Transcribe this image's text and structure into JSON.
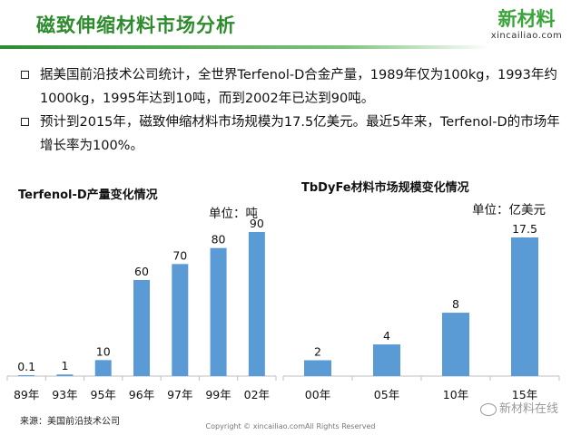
{
  "header": {
    "title": "磁致伸缩材料市场分析",
    "logo_text": "新材料",
    "logo_sub": "xincailiao.com"
  },
  "bullets": [
    "据美国前沿技术公司统计，全世界Terfenol-D合金产量，1989年仅为100kg，1993年约1000kg，1995年达到10吨，而到2002年已达到90吨。",
    "预计到2015年，磁致伸缩材料市场规模为17.5亿美元。最近5年来，Terfenol-D的市场年增长率为100%。"
  ],
  "chart_data": [
    {
      "type": "bar",
      "title": "Terfenol-D产量变化情况",
      "unit_label": "单位：吨",
      "categories": [
        "89年",
        "93年",
        "95年",
        "96年",
        "97年",
        "99年",
        "02年"
      ],
      "values": [
        0.1,
        1,
        10,
        60,
        70,
        80,
        90
      ],
      "value_labels": [
        "0.1",
        "1",
        "10",
        "60",
        "70",
        "80",
        "90"
      ],
      "ylim": [
        0,
        90
      ],
      "grid": false,
      "bar_color": "#5b9bd5"
    },
    {
      "type": "bar",
      "title": "TbDyFe材料市场规模变化情况",
      "unit_label": "单位：亿美元",
      "categories": [
        "00年",
        "05年",
        "10年",
        "15年"
      ],
      "values": [
        2,
        4,
        8,
        17.5
      ],
      "value_labels": [
        "2",
        "4",
        "8",
        "17.5"
      ],
      "ylim": [
        0,
        17.5
      ],
      "grid": false,
      "bar_color": "#5b9bd5"
    }
  ],
  "footer": {
    "source": "来源：美国前沿技术公司",
    "copyright": "Copyright © xincailiao.comAll Rights Reserved",
    "watermark": "新材料在线"
  }
}
